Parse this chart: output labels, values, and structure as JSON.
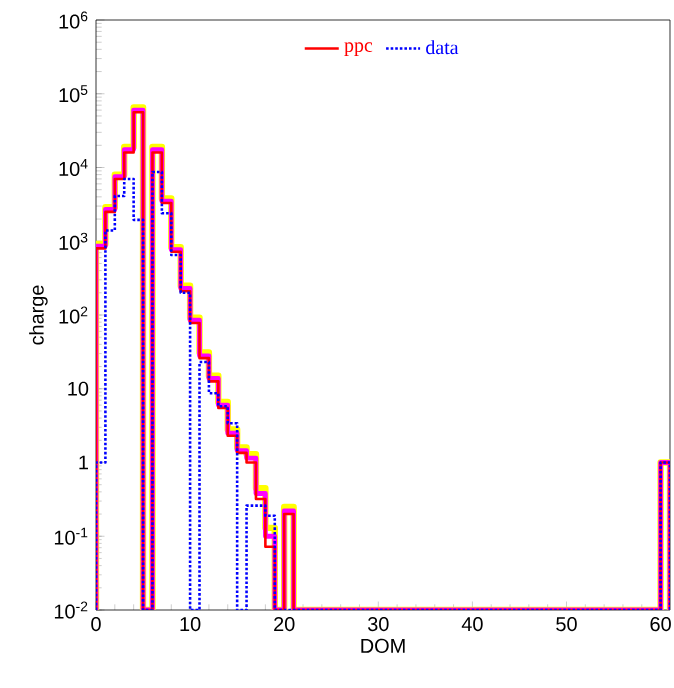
{
  "chart_data": {
    "type": "histogram",
    "xlabel": "DOM",
    "ylabel": "charge",
    "log": "y",
    "legend": "top",
    "xlim": [
      0,
      61
    ],
    "ylim": [
      0.01,
      1000000
    ],
    "xticks": [
      0,
      10,
      20,
      30,
      40,
      50,
      60
    ],
    "yticks": [
      {
        "value": 0.01,
        "label": "10$^{-2}$"
      },
      {
        "value": 0.1,
        "label": "10$^{-1}$"
      },
      1,
      10,
      {
        "value": 100,
        "label": "10$^{2}$"
      },
      {
        "value": 1000,
        "label": "10$^{3}$"
      },
      {
        "value": 10000,
        "label": "10$^{4}$"
      },
      {
        "value": 100000,
        "label": "10$^{5}$"
      },
      {
        "value": 1000000,
        "label": "10$^{6}$"
      }
    ],
    "bins": [
      0,
      1,
      2,
      3,
      4,
      5,
      6,
      7,
      8,
      9,
      10,
      11,
      12,
      13,
      14,
      15,
      16,
      17,
      18,
      19,
      20,
      21,
      22,
      23,
      24,
      25,
      26,
      27,
      28,
      29,
      30,
      31,
      32,
      33,
      34,
      35,
      36,
      37,
      38,
      39,
      40,
      41,
      42,
      43,
      44,
      45,
      46,
      47,
      48,
      49,
      50,
      51,
      52,
      53,
      54,
      55,
      56,
      57,
      58,
      59,
      60,
      61
    ],
    "series": [
      {
        "name": "ppc",
        "color": "#ff0000",
        "line_style": "solid",
        "values": [
          800,
          2500,
          7000,
          16000,
          56000,
          null,
          16000,
          3300,
          720,
          210,
          78,
          26,
          12.6,
          5.5,
          2.3,
          1.35,
          1.0,
          0.32,
          0.072,
          null,
          0.2,
          null,
          null,
          null,
          null,
          null,
          null,
          null,
          null,
          null,
          null,
          null,
          null,
          null,
          null,
          null,
          null,
          null,
          null,
          null,
          null,
          null,
          null,
          null,
          null,
          null,
          null,
          null,
          null,
          null,
          null,
          null,
          null,
          null,
          null,
          null,
          null,
          null,
          null,
          null,
          1
        ]
      },
      {
        "name": "data",
        "color": "#0000ff",
        "line_style": "dotted",
        "values": [
          1,
          1400,
          4100,
          7000,
          1950,
          null,
          8700,
          2400,
          650,
          200,
          null,
          23,
          8.7,
          5.8,
          3.4,
          null,
          0.26,
          0.26,
          0.19,
          null,
          null,
          null,
          null,
          null,
          null,
          null,
          null,
          null,
          null,
          null,
          null,
          null,
          null,
          null,
          null,
          null,
          null,
          null,
          null,
          null,
          null,
          null,
          null,
          null,
          null,
          null,
          null,
          null,
          null,
          null,
          null,
          null,
          null,
          null,
          null,
          null,
          null,
          null,
          null,
          null,
          1
        ]
      },
      {
        "color": "#ffff00",
        "line_style": "solid",
        "values": [
          920,
          2900,
          8000,
          19000,
          65000,
          null,
          19000,
          3800,
          830,
          250,
          92,
          31,
          15,
          6.6,
          2.8,
          1.6,
          1.3,
          0.45,
          0.13,
          null,
          0.25,
          null,
          null,
          null,
          null,
          null,
          null,
          null,
          null,
          null,
          null,
          null,
          null,
          null,
          null,
          null,
          null,
          null,
          null,
          null,
          null,
          null,
          null,
          null,
          null,
          null,
          null,
          null,
          null,
          null,
          null,
          null,
          null,
          null,
          null,
          null,
          null,
          null,
          null,
          null,
          1
        ]
      },
      {
        "color": "#ff00ff",
        "line_style": "solid",
        "values": [
          860,
          2700,
          7500,
          17500,
          60000,
          null,
          17500,
          3500,
          770,
          230,
          85,
          28,
          13.8,
          6,
          2.5,
          1.45,
          1.15,
          0.38,
          0.1,
          null,
          0.22,
          null,
          null,
          null,
          null,
          null,
          null,
          null,
          null,
          null,
          null,
          null,
          null,
          null,
          null,
          null,
          null,
          null,
          null,
          null,
          null,
          null,
          null,
          null,
          null,
          null,
          null,
          null,
          null,
          null,
          null,
          null,
          null,
          null,
          null,
          null,
          null,
          null,
          null,
          null,
          1
        ]
      }
    ]
  }
}
